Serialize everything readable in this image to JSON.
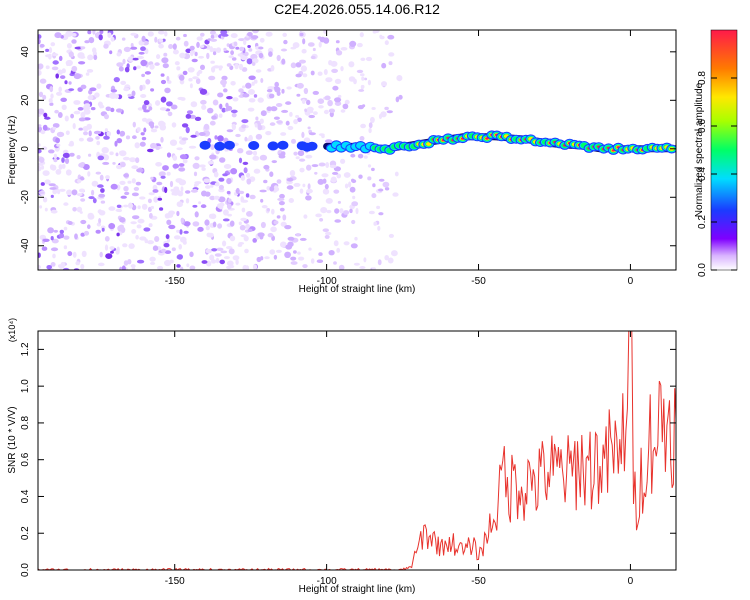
{
  "figure": {
    "title": "C2E4.2026.055.14.06.R12"
  },
  "chart_data": [
    {
      "type": "heatmap",
      "title": "",
      "xlabel": "Height of straight line (km)",
      "ylabel": "Frequency (Hz)",
      "xlim": [
        -195,
        15
      ],
      "ylim": [
        -50,
        49
      ],
      "xticks": [
        -150,
        -100,
        -50,
        0
      ],
      "yticks": [
        -40,
        -20,
        0,
        20,
        40
      ],
      "colorbar": {
        "label": "Normalized spectral amplitude",
        "range": [
          0.0,
          1.0
        ],
        "ticks": [
          0.0,
          0.2,
          0.4,
          0.6,
          0.8
        ],
        "colormap": "rainbow: white, violet, blue, cyan, green, yellow, orange, red"
      },
      "features": [
        {
          "name": "noise band",
          "x_range": [
            -195,
            -75
          ],
          "y_range": [
            -50,
            49
          ]
        },
        {
          "name": "signal ridge",
          "points": [
            [
              -140,
              2
            ],
            [
              -132,
              1
            ],
            [
              -112,
              1
            ],
            [
              -100,
              1
            ],
            [
              -90,
              1
            ],
            [
              -80,
              0
            ],
            [
              -75,
              1
            ],
            [
              -65,
              3
            ],
            [
              -55,
              5
            ],
            [
              -45,
              5
            ],
            [
              -35,
              4
            ],
            [
              -25,
              2
            ],
            [
              -15,
              1
            ],
            [
              -10,
              0
            ],
            [
              -5,
              0
            ],
            [
              0,
              0
            ],
            [
              5,
              0
            ],
            [
              10,
              0
            ],
            [
              15,
              0
            ]
          ]
        }
      ]
    },
    {
      "type": "line",
      "title": "",
      "xlabel": "Height of straight line (km)",
      "ylabel": "SNR (10 * V/V)",
      "yscale_label": "(x10⁴)",
      "xlim": [
        -195,
        15
      ],
      "ylim": [
        0,
        1.3
      ],
      "xticks": [
        -150,
        -100,
        -50,
        0
      ],
      "yticks": [
        0.0,
        0.2,
        0.4,
        0.6,
        0.8,
        1.0,
        1.2
      ],
      "series": [
        {
          "name": "SNR",
          "color": "#e8332d",
          "x": [
            -195,
            -180,
            -160,
            -140,
            -120,
            -100,
            -90,
            -80,
            -75,
            -72,
            -70,
            -68,
            -65,
            -62,
            -60,
            -57,
            -55,
            -52,
            -50,
            -48,
            -45,
            -43,
            -42,
            -40,
            -38,
            -35,
            -32,
            -30,
            -28,
            -25,
            -22,
            -20,
            -17,
            -15,
            -12,
            -10,
            -8,
            -6,
            -4,
            -2,
            -1,
            0,
            1,
            2,
            4,
            6,
            8,
            10,
            12,
            15
          ],
          "y": [
            0.0,
            0.0,
            0.0,
            0.0,
            0.0,
            0.0,
            0.0,
            0.0,
            0.0,
            0.02,
            0.12,
            0.2,
            0.17,
            0.12,
            0.16,
            0.13,
            0.1,
            0.14,
            0.08,
            0.15,
            0.3,
            0.4,
            0.55,
            0.42,
            0.5,
            0.45,
            0.5,
            0.47,
            0.55,
            0.52,
            0.55,
            0.5,
            0.6,
            0.55,
            0.58,
            0.6,
            0.55,
            0.7,
            0.52,
            0.8,
            1.1,
            1.28,
            0.5,
            0.35,
            0.55,
            0.7,
            0.75,
            0.8,
            0.8,
            0.82
          ]
        }
      ]
    }
  ]
}
